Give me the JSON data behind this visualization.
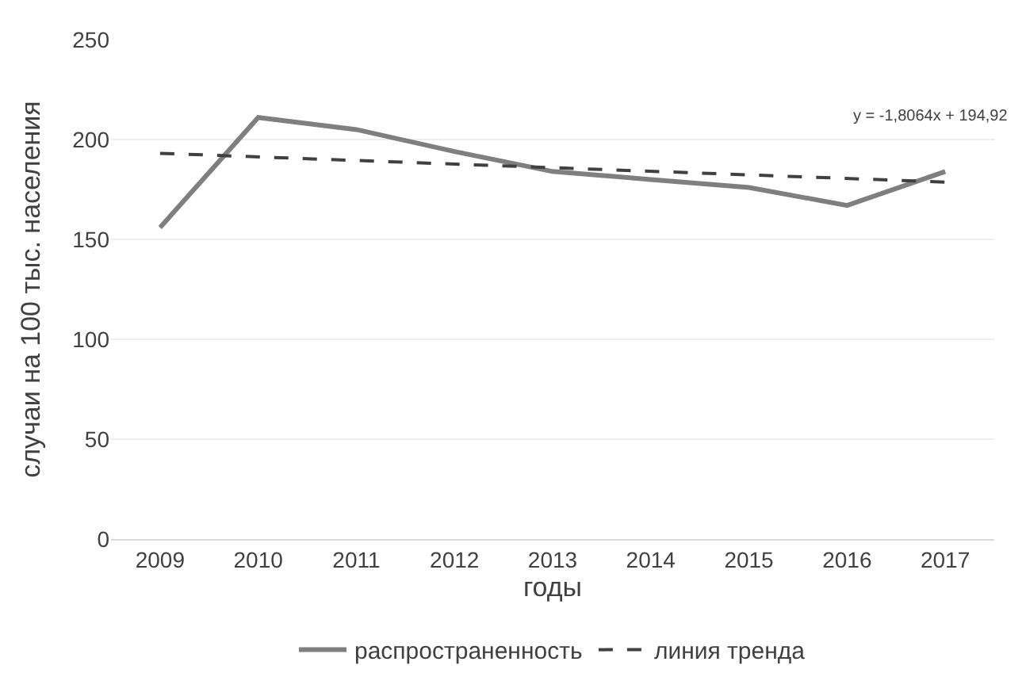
{
  "chart_data": {
    "type": "line",
    "categories": [
      "2009",
      "2010",
      "2011",
      "2012",
      "2013",
      "2014",
      "2015",
      "2016",
      "2017"
    ],
    "xlabel": "годы",
    "ylabel": "случаи на 100 тыс. населения",
    "series": [
      {
        "name": "распространенность",
        "color": "#7f7f7f",
        "values": [
          156,
          211,
          205,
          194,
          184,
          180,
          176,
          167,
          184
        ],
        "line_style": "solid"
      },
      {
        "name": "линия тренда",
        "color": "#404040",
        "values": [
          193.1,
          null,
          null,
          null,
          null,
          null,
          null,
          null,
          178.7
        ],
        "line_style": "dashed"
      }
    ],
    "annotations": [
      "y = -1,8064x + 194,92"
    ],
    "ylim": [
      0,
      250
    ],
    "yticks": [
      0,
      50,
      100,
      150,
      200,
      250
    ],
    "grid": "y",
    "legend": "bottom",
    "marker": "none"
  }
}
